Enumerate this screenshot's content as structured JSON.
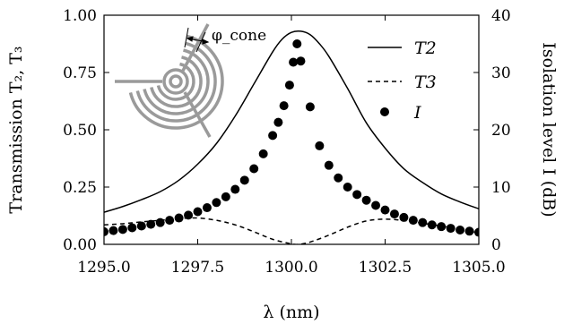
{
  "chart_data": {
    "type": "line",
    "xlabel": "λ (nm)",
    "ylabel_left": "Transmission T₂, T₃",
    "ylabel_right": "Isolation level I (dB)",
    "xlim": [
      1295.0,
      1305.0
    ],
    "ylim_left": [
      0.0,
      1.0
    ],
    "ylim_right": [
      0,
      40
    ],
    "x_ticks": [
      "1295.0",
      "1297.5",
      "1300.0",
      "1302.5",
      "1305.0"
    ],
    "y_ticks_left": [
      "0.00",
      "0.25",
      "0.50",
      "0.75",
      "1.00"
    ],
    "y_ticks_right": [
      "0",
      "10",
      "20",
      "30",
      "40"
    ],
    "legend_position": "top-right",
    "inset_label": "φ_cone",
    "series": [
      {
        "name": "T2",
        "style": "solid",
        "axis": "left",
        "x": [
          1295.0,
          1295.5,
          1296.0,
          1296.5,
          1297.0,
          1297.5,
          1298.0,
          1298.5,
          1299.0,
          1299.5,
          1299.75,
          1300.0,
          1300.25,
          1300.5,
          1300.75,
          1301.0,
          1301.5,
          1302.0,
          1302.5,
          1303.0,
          1303.5,
          1304.0,
          1304.5,
          1305.0
        ],
        "values": [
          0.14,
          0.165,
          0.195,
          0.23,
          0.28,
          0.35,
          0.44,
          0.56,
          0.7,
          0.84,
          0.895,
          0.925,
          0.93,
          0.915,
          0.875,
          0.82,
          0.68,
          0.53,
          0.42,
          0.33,
          0.27,
          0.22,
          0.185,
          0.155
        ]
      },
      {
        "name": "T3",
        "style": "dashed",
        "axis": "left",
        "x": [
          1295.0,
          1295.5,
          1296.0,
          1296.5,
          1297.0,
          1297.5,
          1298.0,
          1298.5,
          1299.0,
          1299.5,
          1300.0,
          1300.2,
          1300.5,
          1301.0,
          1301.5,
          1302.0,
          1302.5,
          1303.0,
          1303.5,
          1304.0,
          1304.5,
          1305.0
        ],
        "values": [
          0.085,
          0.09,
          0.098,
          0.105,
          0.112,
          0.115,
          0.105,
          0.085,
          0.055,
          0.022,
          0.002,
          0.0,
          0.01,
          0.04,
          0.075,
          0.102,
          0.11,
          0.104,
          0.092,
          0.08,
          0.065,
          0.05
        ]
      },
      {
        "name": "I",
        "style": "dots",
        "axis": "right",
        "x": [
          1295.0,
          1295.25,
          1295.5,
          1295.75,
          1296.0,
          1296.25,
          1296.5,
          1296.75,
          1297.0,
          1297.25,
          1297.5,
          1297.75,
          1298.0,
          1298.25,
          1298.5,
          1298.75,
          1299.0,
          1299.25,
          1299.5,
          1299.65,
          1299.8,
          1299.95,
          1300.05,
          1300.15,
          1300.25,
          1300.5,
          1300.75,
          1301.0,
          1301.25,
          1301.5,
          1301.75,
          1302.0,
          1302.25,
          1302.5,
          1302.75,
          1303.0,
          1303.25,
          1303.5,
          1303.75,
          1304.0,
          1304.25,
          1304.5,
          1304.75,
          1305.0
        ],
        "values": [
          2.2,
          2.4,
          2.6,
          2.9,
          3.2,
          3.5,
          3.8,
          4.2,
          4.6,
          5.1,
          5.7,
          6.4,
          7.3,
          8.3,
          9.6,
          11.2,
          13.2,
          15.8,
          19.0,
          21.3,
          24.2,
          27.8,
          31.8,
          35.0,
          32.0,
          24.0,
          17.2,
          13.8,
          11.6,
          10.0,
          8.7,
          7.7,
          6.8,
          6.0,
          5.3,
          4.7,
          4.2,
          3.8,
          3.4,
          3.1,
          2.8,
          2.5,
          2.3,
          2.1
        ]
      }
    ]
  }
}
